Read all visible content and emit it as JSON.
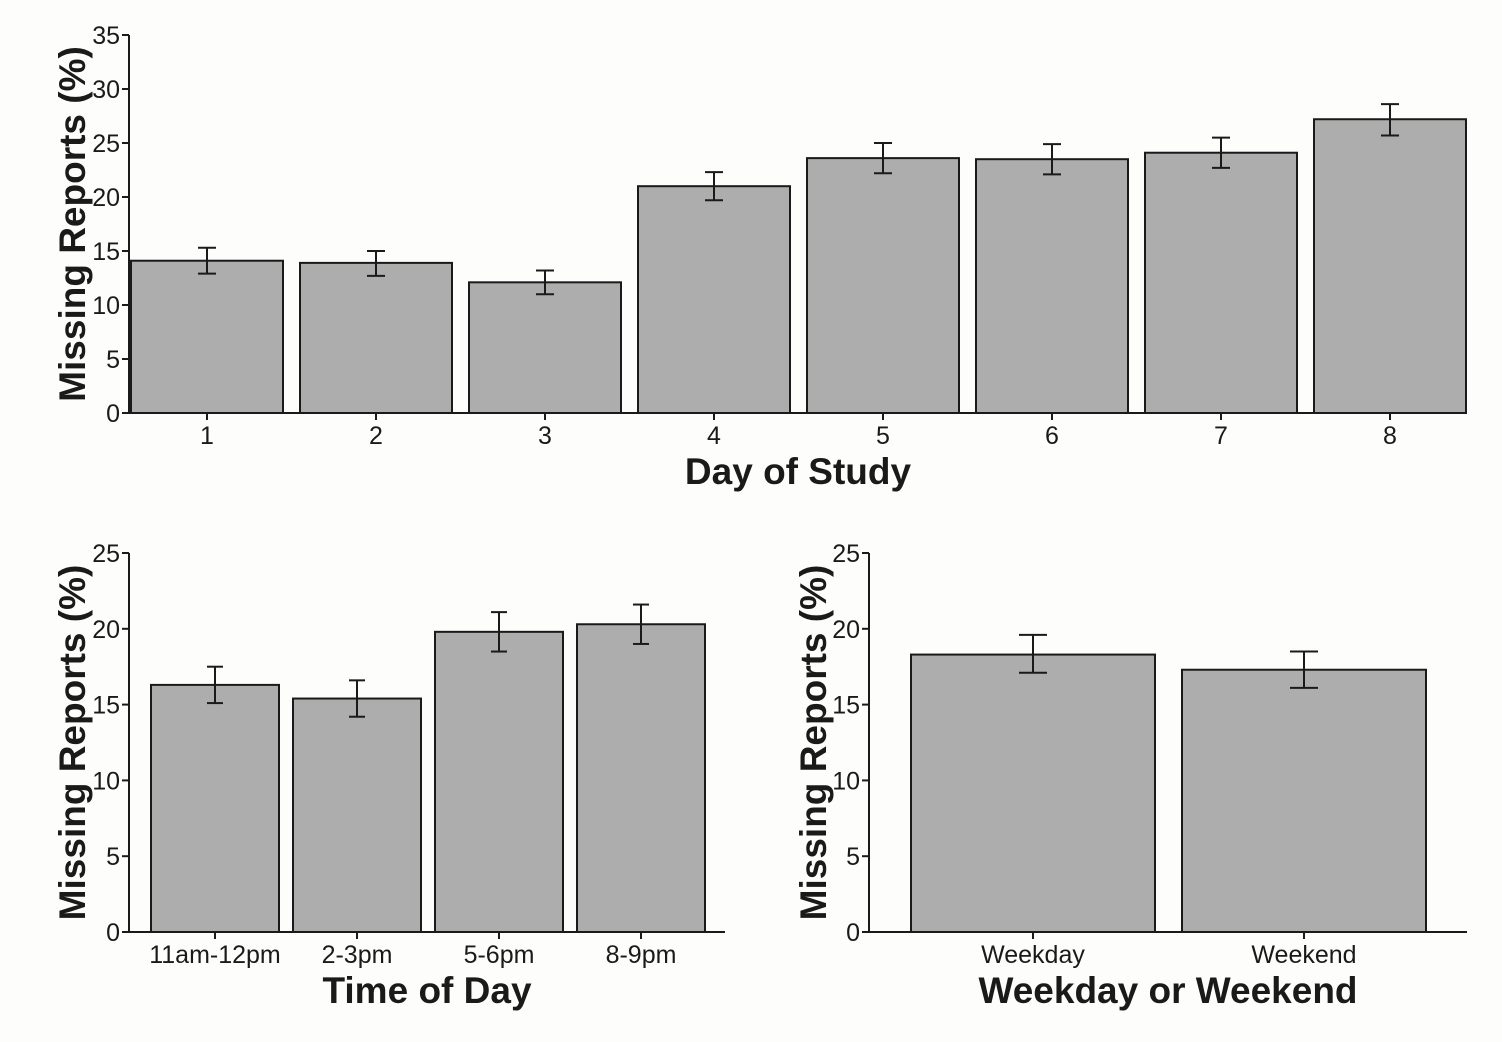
{
  "colors": {
    "bar_fill": "#adadad",
    "bar_edge": "#1a1a1a",
    "background": "#fdfdfc"
  },
  "chart_data": [
    {
      "type": "bar",
      "title": "",
      "xlabel": "Day of Study",
      "ylabel": "Missing Reports (%)",
      "ylim": [
        0,
        35
      ],
      "yticks": [
        0,
        5,
        10,
        15,
        20,
        25,
        30,
        35
      ],
      "categories": [
        "1",
        "2",
        "3",
        "4",
        "5",
        "6",
        "7",
        "8"
      ],
      "values": [
        14.1,
        13.9,
        12.1,
        21.0,
        23.6,
        23.5,
        24.1,
        27.2
      ],
      "error_low": [
        12.9,
        12.7,
        11.0,
        19.7,
        22.2,
        22.1,
        22.7,
        25.7
      ],
      "error_high": [
        15.3,
        15.0,
        13.2,
        22.3,
        25.0,
        24.9,
        25.5,
        28.6
      ],
      "grid": false
    },
    {
      "type": "bar",
      "title": "",
      "xlabel": "Time of Day",
      "ylabel": "Missing Reports (%)",
      "ylim": [
        0,
        25
      ],
      "yticks": [
        0,
        5,
        10,
        15,
        20,
        25
      ],
      "categories": [
        "11am-12pm",
        "2-3pm",
        "5-6pm",
        "8-9pm"
      ],
      "values": [
        16.3,
        15.4,
        19.8,
        20.3
      ],
      "error_low": [
        15.1,
        14.2,
        18.5,
        19.0
      ],
      "error_high": [
        17.5,
        16.6,
        21.1,
        21.6
      ],
      "grid": false
    },
    {
      "type": "bar",
      "title": "",
      "xlabel": "Weekday or Weekend",
      "ylabel": "Missing Reports (%)",
      "ylim": [
        0,
        25
      ],
      "yticks": [
        0,
        5,
        10,
        15,
        20,
        25
      ],
      "categories": [
        "Weekday",
        "Weekend"
      ],
      "values": [
        18.3,
        17.3
      ],
      "error_low": [
        17.1,
        16.1
      ],
      "error_high": [
        19.6,
        18.5
      ],
      "grid": false
    }
  ]
}
